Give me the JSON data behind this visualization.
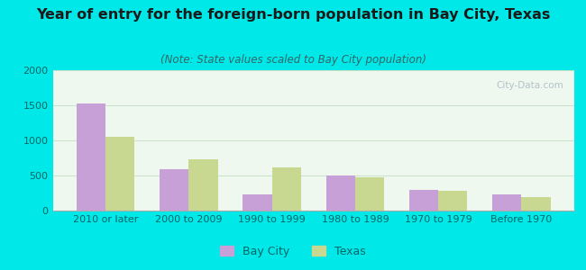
{
  "title": "Year of entry for the foreign-born population in Bay City, Texas",
  "subtitle": "(Note: State values scaled to Bay City population)",
  "categories": [
    "2010 or later",
    "2000 to 2009",
    "1990 to 1999",
    "1980 to 1989",
    "1970 to 1979",
    "Before 1970"
  ],
  "bay_city_values": [
    1520,
    590,
    230,
    500,
    290,
    225
  ],
  "texas_values": [
    1050,
    730,
    615,
    475,
    285,
    190
  ],
  "bay_city_color": "#c8a0d8",
  "texas_color": "#c8d890",
  "background_outer": "#00e8e8",
  "background_chart": "#eef8ee",
  "ylim": [
    0,
    2000
  ],
  "yticks": [
    0,
    500,
    1000,
    1500,
    2000
  ],
  "bar_width": 0.35,
  "legend_labels": [
    "Bay City",
    "Texas"
  ],
  "title_fontsize": 11.5,
  "subtitle_fontsize": 8.5,
  "tick_fontsize": 8,
  "legend_fontsize": 9,
  "title_color": "#1a1a1a",
  "subtitle_color": "#336666",
  "tick_color": "#006666",
  "watermark": "City-Data.com"
}
